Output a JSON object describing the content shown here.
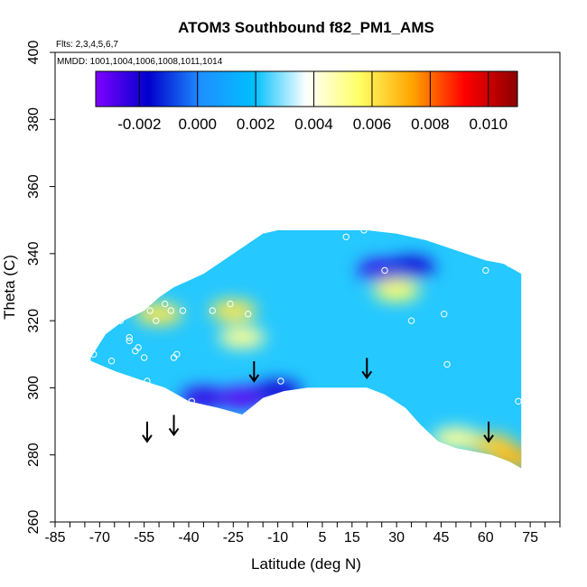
{
  "chart_data": {
    "type": "heatmap",
    "title": "ATOM3 Southbound f82_PM1_AMS",
    "flights_note": "Flts: 2,3,4,5,6,7",
    "dates_note": "MMDD: 1001,1004,1006,1008,1011,1014",
    "xlabel": "Latitude (deg N)",
    "ylabel": "Theta (C)",
    "xlim": [
      -85,
      85
    ],
    "ylim": [
      260,
      400
    ],
    "x_ticks": [
      -85,
      -70,
      -55,
      -40,
      -25,
      -10,
      5,
      15,
      30,
      45,
      60,
      75
    ],
    "y_ticks": [
      260,
      280,
      300,
      320,
      340,
      360,
      380,
      400
    ],
    "colorbar": {
      "range": [
        -0.0035,
        0.011
      ],
      "tick_values": [
        -0.002,
        0.0,
        0.002,
        0.004,
        0.006,
        0.008,
        0.01
      ],
      "tick_labels": [
        "-0.002",
        "0.000",
        "0.002",
        "0.004",
        "0.006",
        "0.008",
        "0.010"
      ],
      "colors": [
        "#7f00ff",
        "#0000cd",
        "#1e90ff",
        "#00bfff",
        "#ffffff",
        "#ffff66",
        "#ffa500",
        "#ff0000",
        "#8b0000"
      ]
    },
    "envelope": {
      "top": [
        [
          -73,
          309
        ],
        [
          -68,
          316
        ],
        [
          -62,
          320
        ],
        [
          -55,
          323
        ],
        [
          -50,
          327
        ],
        [
          -45,
          330
        ],
        [
          -40,
          332
        ],
        [
          -35,
          334
        ],
        [
          -30,
          337
        ],
        [
          -25,
          340
        ],
        [
          -20,
          343
        ],
        [
          -15,
          346
        ],
        [
          -10,
          347
        ],
        [
          0,
          347
        ],
        [
          10,
          347
        ],
        [
          20,
          347
        ],
        [
          30,
          346
        ],
        [
          40,
          344
        ],
        [
          50,
          341
        ],
        [
          60,
          338
        ],
        [
          66,
          337
        ],
        [
          72,
          334
        ]
      ],
      "bottom": [
        [
          -73,
          308
        ],
        [
          -65,
          305
        ],
        [
          -55,
          302
        ],
        [
          -48,
          300
        ],
        [
          -40,
          296
        ],
        [
          -30,
          294
        ],
        [
          -22,
          292
        ],
        [
          -15,
          297
        ],
        [
          -8,
          299
        ],
        [
          0,
          300
        ],
        [
          10,
          300
        ],
        [
          20,
          300
        ],
        [
          26,
          298
        ],
        [
          33,
          294
        ],
        [
          38,
          289
        ],
        [
          44,
          284
        ],
        [
          50,
          282
        ],
        [
          56,
          281
        ],
        [
          62,
          280
        ],
        [
          68,
          278
        ],
        [
          72,
          276
        ]
      ]
    },
    "patches": [
      {
        "lat": -35,
        "theta": 297,
        "value": -0.0025
      },
      {
        "lat": -22,
        "theta": 297,
        "value": -0.003
      },
      {
        "lat": -10,
        "theta": 299,
        "value": -0.002
      },
      {
        "lat": 25,
        "theta": 335,
        "value": -0.0025
      },
      {
        "lat": 35,
        "theta": 336,
        "value": -0.002
      },
      {
        "lat": -50,
        "theta": 322,
        "value": 0.006
      },
      {
        "lat": -25,
        "theta": 323,
        "value": 0.006
      },
      {
        "lat": -22,
        "theta": 315,
        "value": 0.005
      },
      {
        "lat": 30,
        "theta": 329,
        "value": 0.0055
      },
      {
        "lat": 62,
        "theta": 283,
        "value": 0.0065
      },
      {
        "lat": 70,
        "theta": 279,
        "value": 0.007
      },
      {
        "lat": 50,
        "theta": 285,
        "value": 0.005
      }
    ],
    "points": [
      {
        "lat": -72,
        "theta": 310
      },
      {
        "lat": -66,
        "theta": 308
      },
      {
        "lat": -63,
        "theta": 320
      },
      {
        "lat": -61,
        "theta": 323
      },
      {
        "lat": -60,
        "theta": 315
      },
      {
        "lat": -60,
        "theta": 314
      },
      {
        "lat": -58,
        "theta": 311
      },
      {
        "lat": -57,
        "theta": 312
      },
      {
        "lat": -55,
        "theta": 309
      },
      {
        "lat": -54,
        "theta": 302
      },
      {
        "lat": -53,
        "theta": 323
      },
      {
        "lat": -51,
        "theta": 320
      },
      {
        "lat": -48,
        "theta": 325
      },
      {
        "lat": -46,
        "theta": 323
      },
      {
        "lat": -45,
        "theta": 309
      },
      {
        "lat": -44,
        "theta": 310
      },
      {
        "lat": -42,
        "theta": 323
      },
      {
        "lat": -39,
        "theta": 296
      },
      {
        "lat": -32,
        "theta": 323
      },
      {
        "lat": -26,
        "theta": 325
      },
      {
        "lat": -20,
        "theta": 322
      },
      {
        "lat": -9,
        "theta": 302
      },
      {
        "lat": 13,
        "theta": 345
      },
      {
        "lat": 19,
        "theta": 347
      },
      {
        "lat": 26,
        "theta": 335
      },
      {
        "lat": 35,
        "theta": 320
      },
      {
        "lat": 46,
        "theta": 322
      },
      {
        "lat": 47,
        "theta": 307
      },
      {
        "lat": 60,
        "theta": 335
      },
      {
        "lat": 68,
        "theta": 337
      },
      {
        "lat": 71,
        "theta": 296
      }
    ],
    "arrows": [
      {
        "lat": -54,
        "theta": 284
      },
      {
        "lat": -45,
        "theta": 286
      },
      {
        "lat": -18,
        "theta": 302
      },
      {
        "lat": 20,
        "theta": 303
      },
      {
        "lat": 61,
        "theta": 284
      }
    ]
  }
}
